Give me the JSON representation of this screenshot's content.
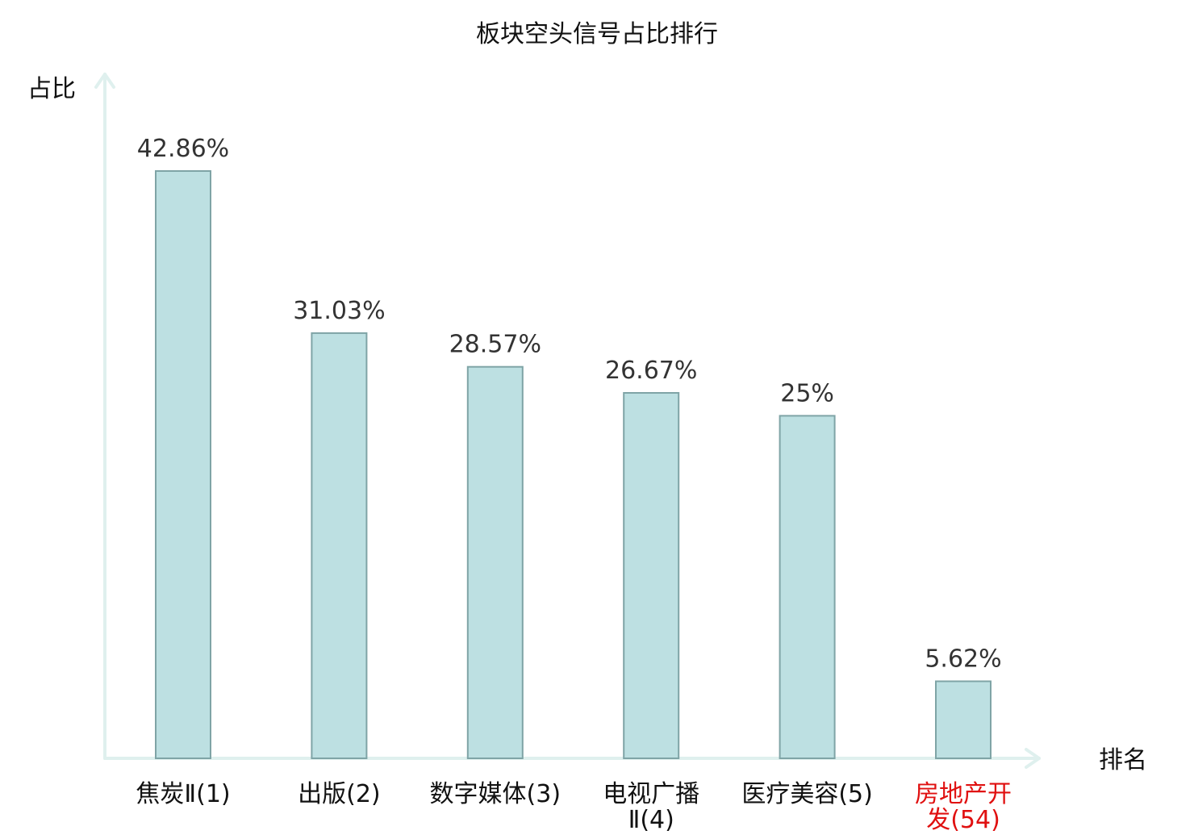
{
  "chart_data": {
    "type": "bar",
    "title": "板块空头信号占比排行",
    "ylabel": "占比",
    "xlabel": "排名",
    "categories": [
      [
        "焦炭Ⅱ(1)"
      ],
      [
        "出版(2)"
      ],
      [
        "数字媒体(3)"
      ],
      [
        "电视广播",
        "Ⅱ(4)"
      ],
      [
        "医疗美容(5)"
      ],
      [
        "房地产开",
        "发(54)"
      ]
    ],
    "values": [
      42.86,
      31.03,
      28.57,
      26.67,
      25,
      5.62
    ],
    "value_labels": [
      "42.86%",
      "31.03%",
      "28.57%",
      "26.67%",
      "25%",
      "5.62%"
    ],
    "highlight_index": 5,
    "ylim": [
      0,
      50
    ],
    "grid": false,
    "colors": {
      "bar_fill": "#bde0e2",
      "bar_stroke": "#7fa4a6",
      "axis": "#dff0ee",
      "highlight_label": "#e01010"
    }
  }
}
